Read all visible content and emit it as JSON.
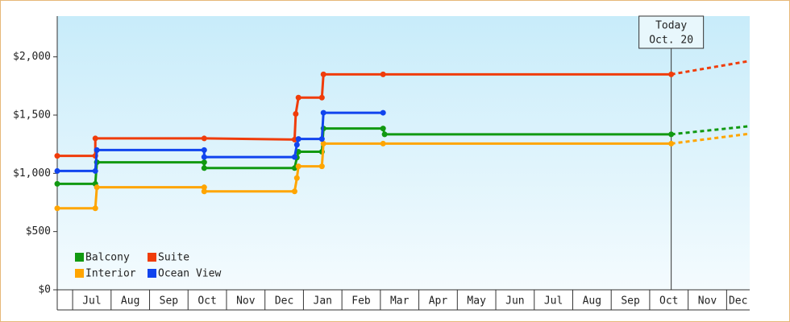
{
  "chart_data": {
    "type": "line",
    "categories": [
      "Jul",
      "Aug",
      "Sep",
      "Oct",
      "Nov",
      "Dec",
      "Jan",
      "Feb",
      "Mar",
      "Apr",
      "May",
      "Jun",
      "Jul",
      "Aug",
      "Sep",
      "Oct",
      "Nov",
      "Dec"
    ],
    "xlim": [
      -0.4,
      17.6
    ],
    "ylim": [
      0,
      2350
    ],
    "yticks": [
      {
        "value": 0,
        "label": "$0"
      },
      {
        "value": 500,
        "label": "$500"
      },
      {
        "value": 1000,
        "label": "$1,000"
      },
      {
        "value": 1500,
        "label": "$1,500"
      },
      {
        "value": 2000,
        "label": "$2,000"
      }
    ],
    "today": {
      "x": 15.56,
      "label": "Today",
      "date": "Oct. 20"
    },
    "legend": "lower left",
    "series": [
      {
        "name": "Balcony",
        "color": "#119911",
        "x": [
          -0.4,
          0.59,
          0.63,
          3.42,
          3.42,
          5.77,
          5.83,
          5.87,
          6.48,
          6.52,
          8.07,
          8.11,
          15.56,
          17.6
        ],
        "values": [
          910,
          910,
          1095,
          1095,
          1045,
          1045,
          1135,
          1185,
          1185,
          1385,
          1385,
          1335,
          1335,
          1405
        ]
      },
      {
        "name": "Suite",
        "color": "#f03c0a",
        "x": [
          -0.4,
          0.59,
          0.59,
          3.42,
          5.77,
          5.8,
          5.87,
          6.48,
          6.52,
          8.07,
          15.56,
          17.6
        ],
        "values": [
          1150,
          1150,
          1300,
          1300,
          1290,
          1510,
          1650,
          1650,
          1850,
          1850,
          1850,
          1965
        ]
      },
      {
        "name": "Interior",
        "color": "#ffa500",
        "x": [
          -0.4,
          0.59,
          0.63,
          3.42,
          3.42,
          5.77,
          5.83,
          5.87,
          6.48,
          6.52,
          8.07,
          15.56,
          17.6
        ],
        "values": [
          700,
          700,
          880,
          880,
          845,
          845,
          960,
          1060,
          1060,
          1255,
          1255,
          1255,
          1340
        ]
      },
      {
        "name": "Ocean View",
        "color": "#1144ee",
        "x": [
          -0.4,
          0.59,
          0.63,
          3.42,
          3.42,
          5.77,
          5.83,
          5.87,
          6.48,
          6.52,
          8.07
        ],
        "values": [
          1020,
          1020,
          1200,
          1200,
          1140,
          1140,
          1245,
          1295,
          1295,
          1520,
          1520
        ]
      }
    ]
  }
}
